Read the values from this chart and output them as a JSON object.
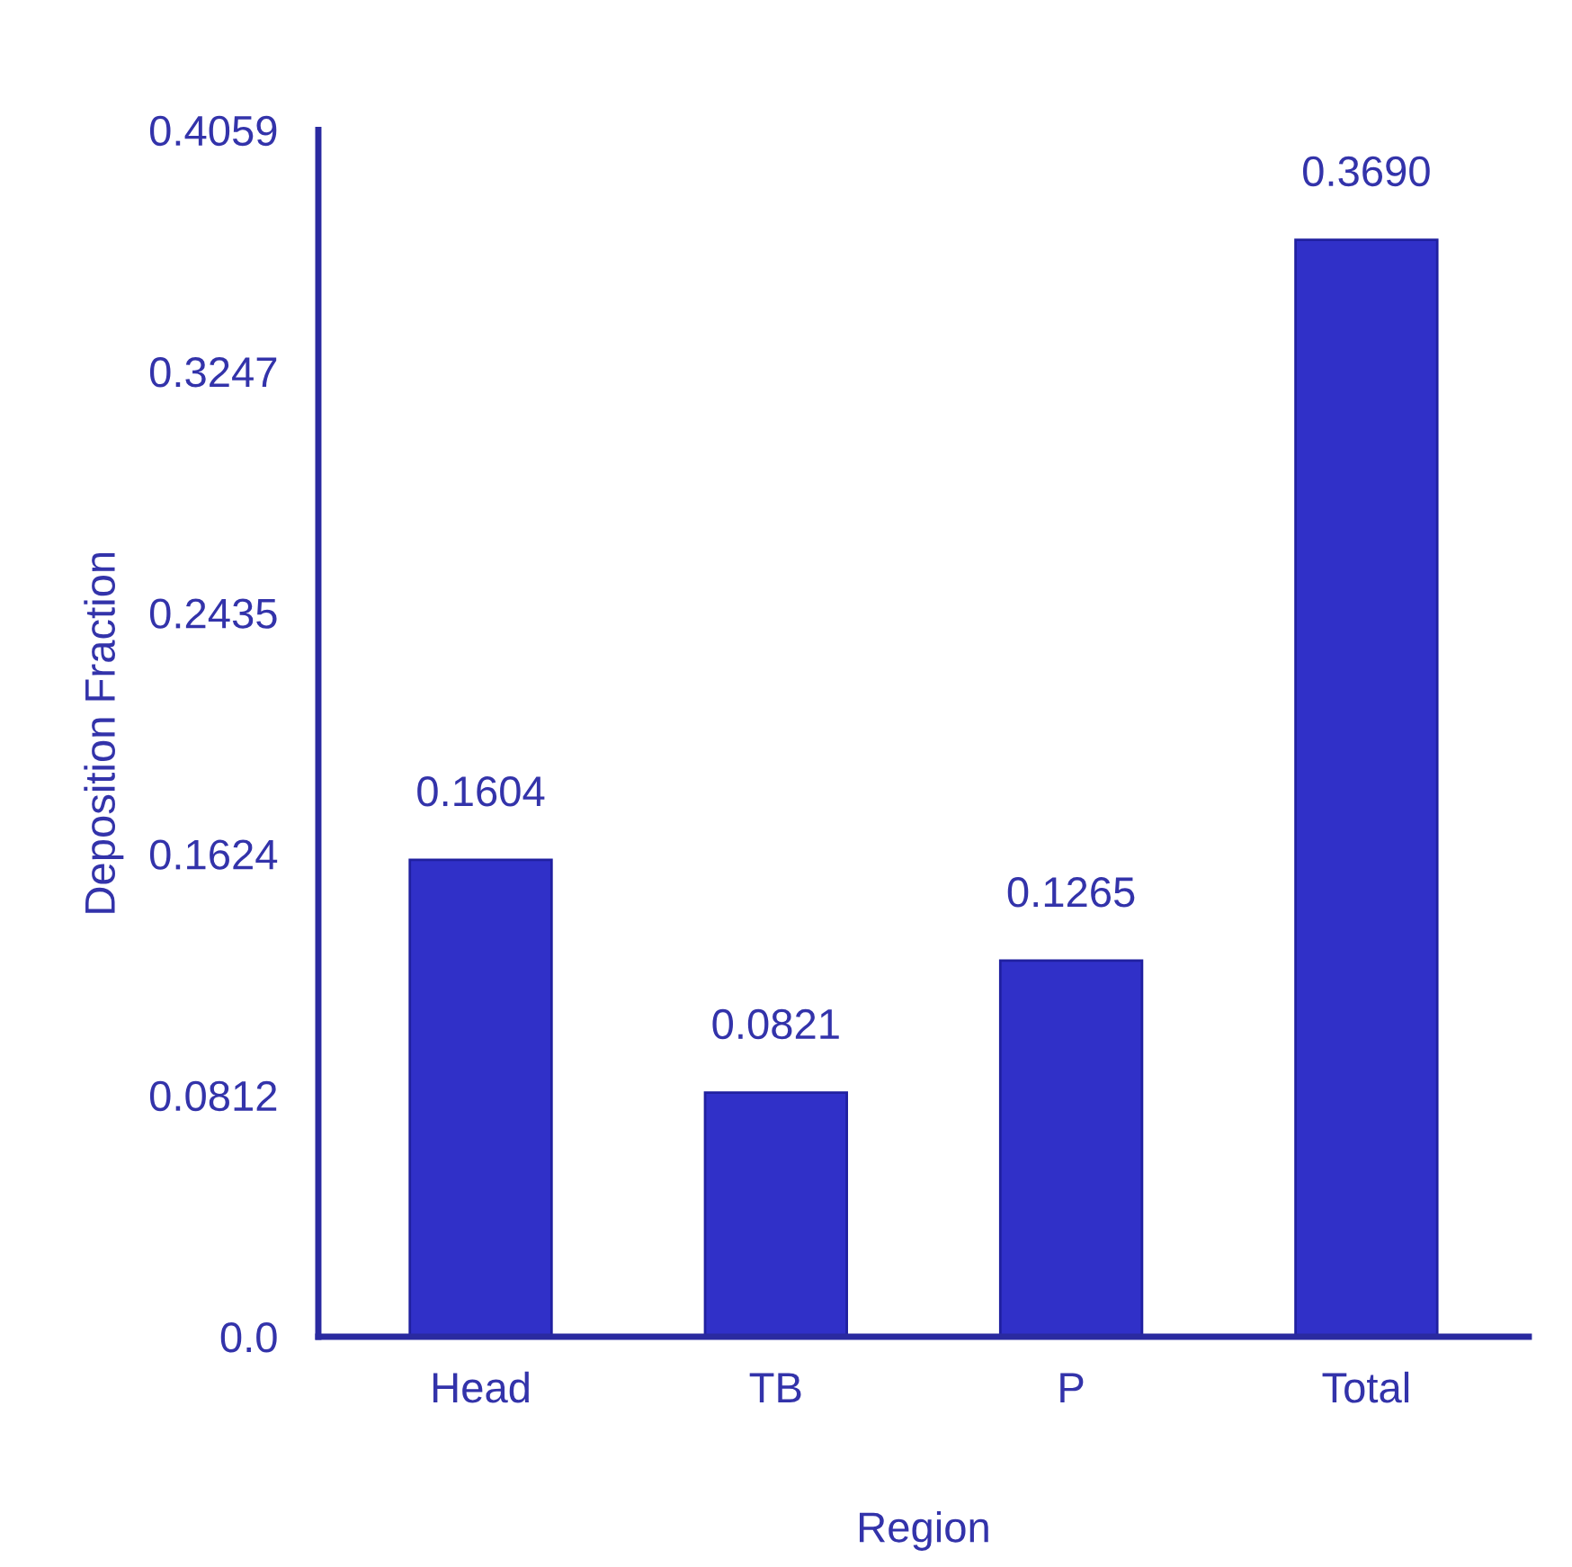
{
  "chart_data": {
    "type": "bar",
    "xlabel": "Region",
    "ylabel": "Deposition Fraction",
    "categories": [
      "Head",
      "TB",
      "P",
      "Total"
    ],
    "values": [
      0.1604,
      0.0821,
      0.1265,
      0.369
    ],
    "value_labels": [
      "0.1604",
      "0.0821",
      "0.1265",
      "0.3690"
    ],
    "color": "#3030c8",
    "ylim": [
      0,
      0.4059
    ],
    "yticks": [
      {
        "value": 0,
        "label": "0.0"
      },
      0.0812,
      0.1624,
      0.2435,
      0.3247,
      0.4059
    ],
    "grid": false,
    "legend": false
  }
}
